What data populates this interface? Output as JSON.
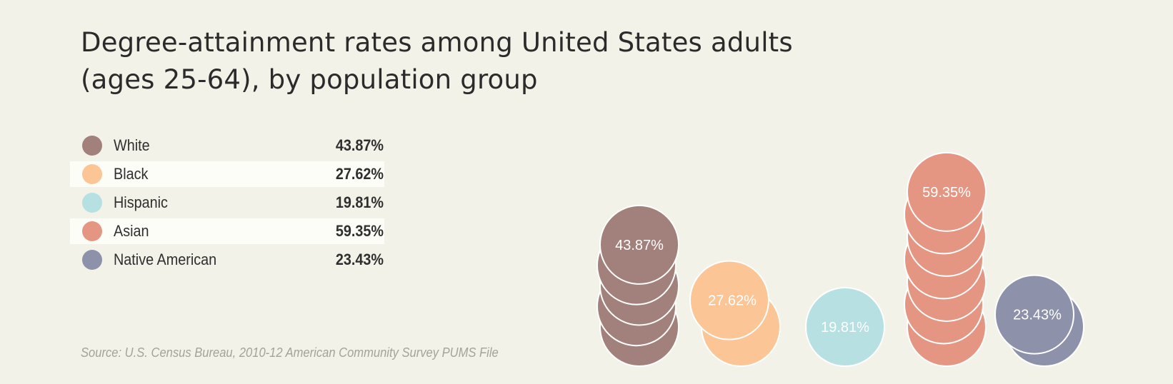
{
  "title": {
    "line1": "Degree-attainment rates among United States adults",
    "line2": "(ages 25-64), by population group"
  },
  "source": "Source: U.S. Census Bureau, 2010-12 American Community Survey PUMS File",
  "colors": {
    "background": "#f3f2e8",
    "White": "#a2807b",
    "Black": "#fcc595",
    "Hispanic": "#b6e0e2",
    "Asian": "#e59682",
    "Native American": "#8d91a9"
  },
  "legend": [
    {
      "label": "White",
      "value": "43.87%"
    },
    {
      "label": "Black",
      "value": "27.62%"
    },
    {
      "label": "Hispanic",
      "value": "19.81%"
    },
    {
      "label": "Asian",
      "value": "59.35%"
    },
    {
      "label": "Native American",
      "value": "23.43%"
    }
  ],
  "chart_data": {
    "type": "bar",
    "categories": [
      "White",
      "Black",
      "Hispanic",
      "Asian",
      "Native American"
    ],
    "values": [
      43.87,
      27.62,
      19.81,
      59.35,
      23.43
    ],
    "data_labels": [
      "43.87%",
      "27.62%",
      "19.81%",
      "59.35%",
      "23.43%"
    ],
    "ylim": [
      0,
      60
    ],
    "title": "Degree-attainment rates among United States adults (ages 25-64), by population group",
    "xlabel": "",
    "ylabel": "",
    "grid": false,
    "legend_placement": "left",
    "mark_style": "stacked coins"
  }
}
